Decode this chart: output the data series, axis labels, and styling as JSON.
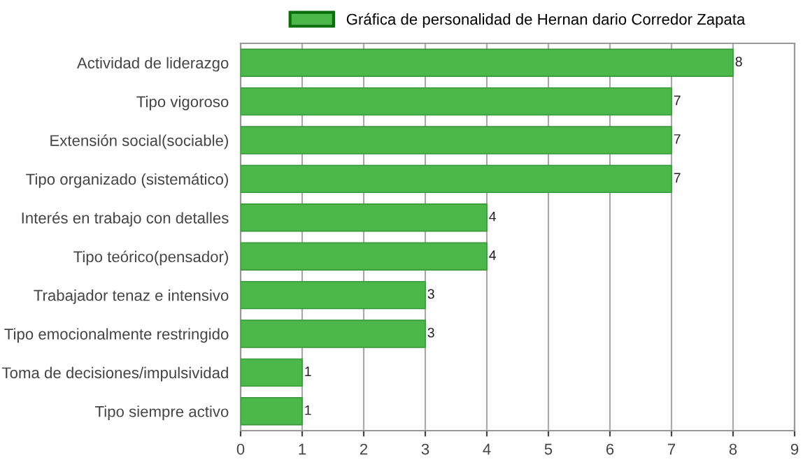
{
  "chart_data": {
    "type": "bar",
    "orientation": "horizontal",
    "categories": [
      "Actividad de liderazgo",
      "Tipo vigoroso",
      "Extensión social(sociable)",
      "Tipo organizado (sistemático)",
      "Interés en trabajo con detalles",
      "Tipo teórico(pensador)",
      "Trabajador tenaz e intensivo",
      "Tipo emocionalmente restringido",
      "Toma de decisiones/impulsividad",
      "Tipo siempre activo"
    ],
    "series": [
      {
        "name": "Gráfica de personalidad de Hernan dario Corredor Zapata",
        "color": "#4cb84c",
        "values": [
          8,
          7,
          7,
          7,
          4,
          4,
          3,
          3,
          1,
          1
        ]
      }
    ],
    "xlim": [
      0,
      9
    ],
    "xticks": [
      0,
      1,
      2,
      3,
      4,
      5,
      6,
      7,
      8,
      9
    ],
    "grid": "x",
    "legend": "top",
    "data_labels": true
  }
}
